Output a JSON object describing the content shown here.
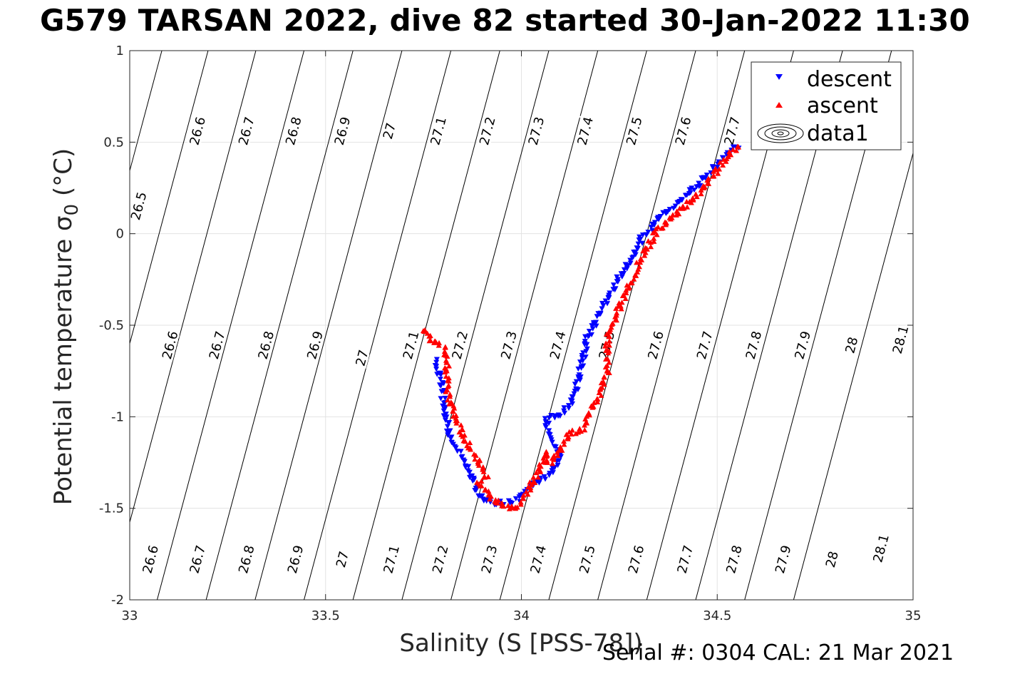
{
  "title": "G579 TARSAN 2022, dive 82 started 30-Jan-2022 11:30",
  "footer": "Serial #: 0304  CAL: 21 Mar 2021",
  "chart_data": {
    "type": "scatter",
    "xlabel": "Salinity (S [PSS-78])",
    "ylabel": "Potential temperature σ",
    "ylabel_sub": "0",
    "ylabel_unit": " (°C)",
    "xlim": [
      33,
      35
    ],
    "ylim": [
      -2,
      1
    ],
    "xticks": [
      33,
      33.5,
      34,
      34.5,
      35
    ],
    "xtick_labels": [
      "33",
      "33.5",
      "34",
      "34.5",
      "35"
    ],
    "yticks": [
      1,
      0.5,
      0,
      -0.5,
      -1,
      -1.5,
      -2
    ],
    "ytick_labels": [
      "1",
      "0.5",
      "0",
      "-0.5",
      "-1",
      "-1.5",
      "-2"
    ],
    "grid": true,
    "legend_position": "top-right",
    "legend": [
      {
        "label": "descent",
        "marker": "down-triangle",
        "color": "#0000ff"
      },
      {
        "label": "ascent",
        "marker": "up-triangle",
        "color": "#ff0000"
      },
      {
        "label": "data1",
        "marker": "contour",
        "color": "#000000"
      }
    ],
    "isopycnals": [
      {
        "sigma": "26.5",
        "s_at_top": 33.082,
        "labels": [
          {
            "s": 33.025,
            "t": 0.15
          }
        ]
      },
      {
        "sigma": "26.6",
        "s_at_top": 33.2,
        "labels": [
          {
            "s": 33.175,
            "t": 0.56
          },
          {
            "s": 33.105,
            "t": -0.61
          },
          {
            "s": 33.055,
            "t": -1.78
          }
        ]
      },
      {
        "sigma": "26.7",
        "s_at_top": 33.322,
        "labels": [
          {
            "s": 33.3,
            "t": 0.56
          },
          {
            "s": 33.225,
            "t": -0.61
          },
          {
            "s": 33.175,
            "t": -1.78
          }
        ]
      },
      {
        "sigma": "26.8",
        "s_at_top": 33.445,
        "labels": [
          {
            "s": 33.42,
            "t": 0.56
          },
          {
            "s": 33.35,
            "t": -0.61
          },
          {
            "s": 33.3,
            "t": -1.78
          }
        ]
      },
      {
        "sigma": "26.9",
        "s_at_top": 33.57,
        "labels": [
          {
            "s": 33.545,
            "t": 0.56
          },
          {
            "s": 33.475,
            "t": -0.61
          },
          {
            "s": 33.425,
            "t": -1.78
          }
        ]
      },
      {
        "sigma": "27",
        "s_at_top": 33.695,
        "labels": [
          {
            "s": 33.665,
            "t": 0.56
          },
          {
            "s": 33.595,
            "t": -0.68
          },
          {
            "s": 33.545,
            "t": -1.78
          }
        ]
      },
      {
        "sigma": "27.1",
        "s_at_top": 33.82,
        "labels": [
          {
            "s": 33.79,
            "t": 0.56
          },
          {
            "s": 33.72,
            "t": -0.61
          },
          {
            "s": 33.67,
            "t": -1.78
          }
        ]
      },
      {
        "sigma": "27.2",
        "s_at_top": 33.945,
        "labels": [
          {
            "s": 33.915,
            "t": 0.56
          },
          {
            "s": 33.845,
            "t": -0.61
          },
          {
            "s": 33.795,
            "t": -1.78
          }
        ]
      },
      {
        "sigma": "27.3",
        "s_at_top": 34.07,
        "labels": [
          {
            "s": 34.04,
            "t": 0.56
          },
          {
            "s": 33.97,
            "t": -0.61
          },
          {
            "s": 33.92,
            "t": -1.78
          }
        ]
      },
      {
        "sigma": "27.4",
        "s_at_top": 34.195,
        "labels": [
          {
            "s": 34.165,
            "t": 0.56
          },
          {
            "s": 34.095,
            "t": -0.61
          },
          {
            "s": 34.045,
            "t": -1.78
          }
        ]
      },
      {
        "sigma": "27.5",
        "s_at_top": 34.32,
        "labels": [
          {
            "s": 34.29,
            "t": 0.56
          },
          {
            "s": 34.22,
            "t": -0.61
          },
          {
            "s": 34.17,
            "t": -1.78
          }
        ]
      },
      {
        "sigma": "27.6",
        "s_at_top": 34.445,
        "labels": [
          {
            "s": 34.415,
            "t": 0.56
          },
          {
            "s": 34.345,
            "t": -0.61
          },
          {
            "s": 34.295,
            "t": -1.78
          }
        ]
      },
      {
        "sigma": "27.7",
        "s_at_top": 34.57,
        "labels": [
          {
            "s": 34.54,
            "t": 0.56
          },
          {
            "s": 34.47,
            "t": -0.61
          },
          {
            "s": 34.42,
            "t": -1.78
          }
        ]
      },
      {
        "sigma": "27.8",
        "s_at_top": 34.695,
        "labels": [
          {
            "s": 34.595,
            "t": -0.61
          },
          {
            "s": 34.545,
            "t": -1.78
          }
        ]
      },
      {
        "sigma": "27.9",
        "s_at_top": 34.82,
        "labels": [
          {
            "s": 34.72,
            "t": -0.61
          },
          {
            "s": 34.67,
            "t": -1.78
          }
        ]
      },
      {
        "sigma": "28",
        "s_at_top": 34.945,
        "labels": [
          {
            "s": 34.845,
            "t": -0.61
          },
          {
            "s": 34.795,
            "t": -1.78
          }
        ]
      },
      {
        "sigma": "28.1",
        "s_at_top": 35.07,
        "labels": [
          {
            "s": 34.97,
            "t": -0.58
          },
          {
            "s": 34.92,
            "t": -1.72
          }
        ]
      }
    ],
    "series": [
      {
        "name": "descent",
        "color": "#0000ff",
        "marker": "down-triangle",
        "points": [
          [
            34.55,
            0.48
          ],
          [
            34.52,
            0.42
          ],
          [
            34.49,
            0.35
          ],
          [
            34.46,
            0.29
          ],
          [
            34.43,
            0.23
          ],
          [
            34.4,
            0.17
          ],
          [
            34.37,
            0.12
          ],
          [
            34.34,
            0.05
          ],
          [
            34.31,
            -0.02
          ],
          [
            34.29,
            -0.1
          ],
          [
            34.27,
            -0.17
          ],
          [
            34.25,
            -0.24
          ],
          [
            34.23,
            -0.32
          ],
          [
            34.21,
            -0.4
          ],
          [
            34.19,
            -0.48
          ],
          [
            34.17,
            -0.56
          ],
          [
            34.16,
            -0.66
          ],
          [
            34.15,
            -0.76
          ],
          [
            34.14,
            -0.86
          ],
          [
            34.12,
            -0.95
          ],
          [
            34.09,
            -0.99
          ],
          [
            34.06,
            -1.02
          ],
          [
            34.08,
            -1.12
          ],
          [
            34.1,
            -1.22
          ],
          [
            34.08,
            -1.3
          ],
          [
            34.05,
            -1.34
          ],
          [
            34.02,
            -1.38
          ],
          [
            34.0,
            -1.44
          ],
          [
            33.97,
            -1.47
          ],
          [
            33.94,
            -1.47
          ],
          [
            33.91,
            -1.46
          ],
          [
            33.89,
            -1.43
          ],
          [
            33.88,
            -1.36
          ],
          [
            33.86,
            -1.27
          ],
          [
            33.84,
            -1.2
          ],
          [
            33.82,
            -1.12
          ],
          [
            33.81,
            -1.02
          ],
          [
            33.8,
            -0.92
          ],
          [
            33.8,
            -0.84
          ],
          [
            33.79,
            -0.76
          ],
          [
            33.78,
            -0.68
          ]
        ]
      },
      {
        "name": "ascent",
        "color": "#ff0000",
        "marker": "up-triangle",
        "points": [
          [
            34.55,
            0.48
          ],
          [
            34.52,
            0.4
          ],
          [
            34.49,
            0.32
          ],
          [
            34.46,
            0.24
          ],
          [
            34.43,
            0.18
          ],
          [
            34.4,
            0.12
          ],
          [
            34.37,
            0.06
          ],
          [
            34.34,
            0.0
          ],
          [
            34.32,
            -0.08
          ],
          [
            34.3,
            -0.16
          ],
          [
            34.28,
            -0.26
          ],
          [
            34.26,
            -0.36
          ],
          [
            34.24,
            -0.45
          ],
          [
            34.22,
            -0.55
          ],
          [
            34.22,
            -0.65
          ],
          [
            34.22,
            -0.76
          ],
          [
            34.2,
            -0.86
          ],
          [
            34.18,
            -0.96
          ],
          [
            34.16,
            -1.06
          ],
          [
            34.12,
            -1.1
          ],
          [
            34.1,
            -1.18
          ],
          [
            34.07,
            -1.26
          ],
          [
            34.06,
            -1.19
          ],
          [
            34.05,
            -1.27
          ],
          [
            34.03,
            -1.36
          ],
          [
            34.01,
            -1.44
          ],
          [
            33.99,
            -1.5
          ],
          [
            33.96,
            -1.49
          ],
          [
            33.93,
            -1.46
          ],
          [
            33.91,
            -1.41
          ],
          [
            33.89,
            -1.36
          ],
          [
            33.91,
            -1.32
          ],
          [
            33.89,
            -1.24
          ],
          [
            33.87,
            -1.17
          ],
          [
            33.85,
            -1.09
          ],
          [
            33.83,
            -1.0
          ],
          [
            33.82,
            -0.92
          ],
          [
            33.81,
            -0.84
          ],
          [
            33.81,
            -0.72
          ],
          [
            33.8,
            -0.62
          ],
          [
            33.78,
            -0.6
          ],
          [
            33.76,
            -0.55
          ],
          [
            33.74,
            -0.52
          ]
        ]
      }
    ]
  }
}
